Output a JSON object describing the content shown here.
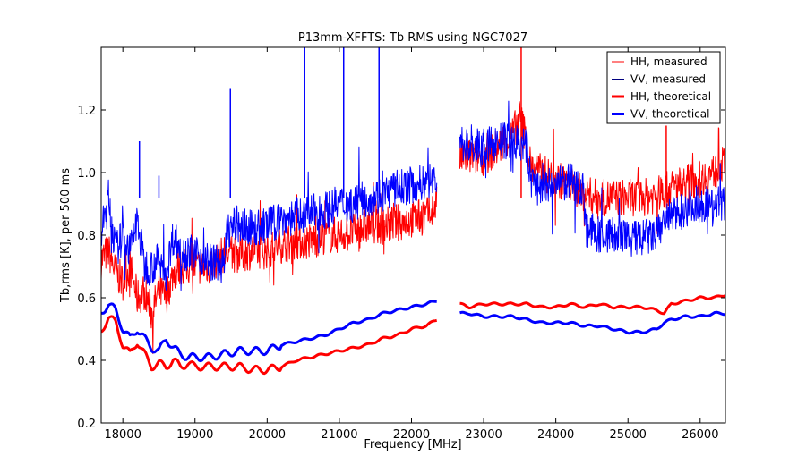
{
  "chart_data": {
    "type": "line",
    "title": "P13mm-XFFTS: Tb RMS using NGC7027",
    "xlabel": "Frequency [MHz]",
    "ylabel": "Tb,rms [K], per 500 ms",
    "xlim": [
      17700,
      26350
    ],
    "ylim": [
      0.2,
      1.4
    ],
    "x_ticks": [
      18000,
      19000,
      20000,
      21000,
      22000,
      23000,
      24000,
      25000,
      26000
    ],
    "y_ticks": [
      0.2,
      0.4,
      0.6,
      0.8,
      1.0,
      1.2
    ],
    "x_tick_labels": [
      "18000",
      "19000",
      "20000",
      "21000",
      "22000",
      "23000",
      "24000",
      "25000",
      "26000"
    ],
    "y_tick_labels": [
      "0.2",
      "0.4",
      "0.6",
      "0.8",
      "1.0",
      "1.2"
    ],
    "grid": false,
    "legend_position": "top-right",
    "legend": [
      {
        "label": "HH, measured",
        "color": "#ff0000",
        "style": "thin"
      },
      {
        "label": "VV, measured",
        "color": "#000080",
        "style": "thin"
      },
      {
        "label": "HH, theoretical",
        "color": "#ff0000",
        "style": "thick"
      },
      {
        "label": "VV, theoretical",
        "color": "#0000ff",
        "style": "thick"
      }
    ],
    "series": [
      {
        "name": "HH, measured",
        "color": "#ff0000",
        "kind": "measured",
        "x": [
          17700,
          17800,
          17900,
          18000,
          18100,
          18200,
          18300,
          18400,
          18500,
          18600,
          18700,
          18800,
          19000,
          19200,
          19400,
          19600,
          19800,
          20000,
          20200,
          20400,
          20600,
          20800,
          21000,
          21200,
          21400,
          21600,
          21800,
          22000,
          22200,
          22350,
          null,
          22670,
          22800,
          23000,
          23200,
          23400,
          23500,
          23600,
          23650,
          23800,
          24000,
          24200,
          24400,
          24600,
          24800,
          25000,
          25200,
          25400,
          25600,
          25800,
          26000,
          26200,
          26350
        ],
        "y": [
          0.72,
          0.75,
          0.68,
          0.65,
          0.7,
          0.6,
          0.62,
          0.55,
          0.62,
          0.6,
          0.68,
          0.7,
          0.7,
          0.7,
          0.74,
          0.74,
          0.75,
          0.75,
          0.77,
          0.78,
          0.78,
          0.8,
          0.8,
          0.81,
          0.83,
          0.83,
          0.84,
          0.85,
          0.86,
          0.9,
          null,
          1.05,
          1.05,
          1.05,
          1.08,
          1.12,
          1.18,
          1.1,
          1.02,
          1.0,
          0.98,
          0.96,
          0.93,
          0.92,
          0.92,
          0.92,
          0.92,
          0.93,
          0.95,
          0.97,
          0.98,
          1.0,
          1.03
        ],
        "spikes": [
          [
            23520,
            1.4
          ],
          [
            25530,
            1.15
          ],
          [
            26350,
            1.2
          ]
        ]
      },
      {
        "name": "VV, measured",
        "color": "#0000ff",
        "kind": "measured",
        "x": [
          17700,
          17800,
          17900,
          18000,
          18100,
          18200,
          18300,
          18400,
          18500,
          18600,
          18700,
          18800,
          19000,
          19200,
          19400,
          19450,
          19600,
          19800,
          20000,
          20200,
          20400,
          20600,
          20800,
          21000,
          21200,
          21400,
          21600,
          21800,
          22000,
          22200,
          22350,
          null,
          22670,
          22800,
          23000,
          23200,
          23400,
          23600,
          23650,
          23800,
          24000,
          24200,
          24380,
          24420,
          24600,
          24800,
          25000,
          25200,
          25400,
          25500,
          25700,
          25900,
          26100,
          26350
        ],
        "y": [
          0.8,
          0.92,
          0.75,
          0.8,
          0.75,
          0.85,
          0.7,
          0.7,
          0.72,
          0.68,
          0.8,
          0.75,
          0.74,
          0.72,
          0.7,
          0.82,
          0.83,
          0.82,
          0.83,
          0.85,
          0.86,
          0.87,
          0.88,
          0.9,
          0.9,
          0.92,
          0.93,
          0.95,
          0.96,
          0.97,
          0.98,
          null,
          1.1,
          1.08,
          1.08,
          1.1,
          1.1,
          1.08,
          0.98,
          0.95,
          0.96,
          0.97,
          0.95,
          0.82,
          0.8,
          0.8,
          0.79,
          0.79,
          0.8,
          0.85,
          0.87,
          0.9,
          0.9,
          0.9
        ],
        "spikes": [
          [
            18230,
            1.1
          ],
          [
            18500,
            0.99
          ],
          [
            19490,
            1.27
          ],
          [
            20520,
            1.4
          ],
          [
            21060,
            1.4
          ],
          [
            21550,
            1.4
          ]
        ]
      },
      {
        "name": "HH, theoretical",
        "color": "#ff0000",
        "kind": "theoretical",
        "x": [
          17700,
          17800,
          17900,
          18000,
          18100,
          18200,
          18300,
          18400,
          18500,
          18600,
          18700,
          18800,
          18900,
          19000,
          19200,
          19400,
          19600,
          19800,
          20000,
          20200,
          20400,
          20600,
          20800,
          21000,
          21200,
          21400,
          21600,
          21800,
          22000,
          22200,
          22350,
          null,
          22670,
          22800,
          23000,
          23200,
          23400,
          23600,
          23800,
          24000,
          24200,
          24400,
          24600,
          24800,
          25000,
          25200,
          25400,
          25500,
          25600,
          25800,
          26000,
          26200,
          26350
        ],
        "y": [
          0.49,
          0.54,
          0.52,
          0.45,
          0.42,
          0.46,
          0.42,
          0.38,
          0.39,
          0.38,
          0.4,
          0.38,
          0.39,
          0.38,
          0.38,
          0.38,
          0.38,
          0.37,
          0.37,
          0.38,
          0.4,
          0.41,
          0.42,
          0.43,
          0.44,
          0.45,
          0.47,
          0.48,
          0.5,
          0.51,
          0.53,
          null,
          0.58,
          0.57,
          0.58,
          0.58,
          0.58,
          0.58,
          0.57,
          0.57,
          0.58,
          0.57,
          0.58,
          0.57,
          0.57,
          0.57,
          0.56,
          0.55,
          0.58,
          0.59,
          0.6,
          0.6,
          0.61
        ]
      },
      {
        "name": "VV, theoretical",
        "color": "#0000ff",
        "kind": "theoretical",
        "x": [
          17700,
          17800,
          17900,
          18000,
          18100,
          18200,
          18300,
          18400,
          18500,
          18600,
          18700,
          18800,
          18900,
          19000,
          19200,
          19400,
          19600,
          19800,
          20000,
          20200,
          20400,
          20600,
          20800,
          21000,
          21200,
          21400,
          21600,
          21800,
          22000,
          22200,
          22350,
          null,
          22670,
          22800,
          23000,
          23200,
          23400,
          23600,
          23800,
          24000,
          24200,
          24400,
          24600,
          24800,
          25000,
          25200,
          25400,
          25500,
          25600,
          25800,
          26000,
          26200,
          26350
        ],
        "y": [
          0.55,
          0.58,
          0.56,
          0.5,
          0.47,
          0.5,
          0.47,
          0.44,
          0.43,
          0.47,
          0.44,
          0.42,
          0.41,
          0.41,
          0.41,
          0.42,
          0.43,
          0.43,
          0.43,
          0.45,
          0.46,
          0.47,
          0.48,
          0.5,
          0.52,
          0.53,
          0.55,
          0.56,
          0.57,
          0.58,
          0.59,
          null,
          0.55,
          0.55,
          0.54,
          0.54,
          0.54,
          0.53,
          0.52,
          0.52,
          0.52,
          0.51,
          0.51,
          0.5,
          0.49,
          0.49,
          0.5,
          0.52,
          0.53,
          0.54,
          0.54,
          0.55,
          0.55
        ]
      }
    ]
  }
}
